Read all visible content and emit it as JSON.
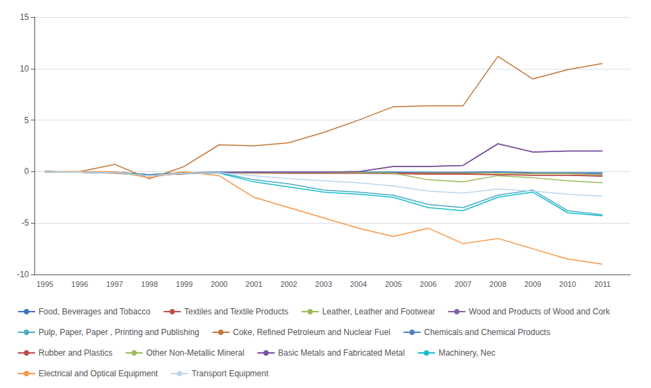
{
  "chart_data": {
    "type": "line",
    "x": [
      1995,
      1996,
      1997,
      1998,
      1999,
      2000,
      2001,
      2002,
      2003,
      2004,
      2005,
      2006,
      2007,
      2008,
      2009,
      2010,
      2011
    ],
    "series": [
      {
        "name": "Food, Beverages and Tobacco",
        "color": "#4472C4",
        "values": [
          0,
          -0.05,
          -0.05,
          -0.3,
          -0.1,
          -0.05,
          -0.05,
          -0.05,
          -0.05,
          -0.05,
          -0.05,
          -0.1,
          -0.1,
          -0.1,
          -0.15,
          -0.15,
          -0.2
        ]
      },
      {
        "name": "Textiles and Textile Products",
        "color": "#C0504D",
        "values": [
          0,
          -0.05,
          -0.15,
          -0.4,
          -0.2,
          -0.1,
          -0.15,
          -0.15,
          -0.15,
          -0.15,
          -0.2,
          -0.25,
          -0.25,
          -0.3,
          -0.35,
          -0.35,
          -0.4
        ]
      },
      {
        "name": "Leather, Leather and Footwear",
        "color": "#9BBB59",
        "values": [
          0,
          -0.05,
          -0.1,
          -0.35,
          -0.15,
          -0.05,
          -0.1,
          -0.1,
          -0.1,
          -0.1,
          -0.1,
          -0.15,
          -0.15,
          -0.15,
          -0.2,
          -0.2,
          -0.3
        ]
      },
      {
        "name": "Wood and Products of Wood and Cork",
        "color": "#8064A2",
        "values": [
          0,
          -0.05,
          -0.1,
          -0.3,
          -0.15,
          -0.1,
          -0.05,
          -0.05,
          -0.05,
          0.0,
          0.5,
          0.5,
          0.6,
          2.7,
          1.9,
          2.0,
          2.0
        ]
      },
      {
        "name": "Pulp, Paper, Paper , Printing and Publishing",
        "color": "#4BACC6",
        "values": [
          0,
          -0.05,
          -0.1,
          -0.35,
          -0.15,
          -0.1,
          -0.8,
          -1.2,
          -1.8,
          -2.0,
          -2.3,
          -3.2,
          -3.5,
          -2.3,
          -1.8,
          -3.8,
          -4.2
        ]
      },
      {
        "name": "Coke, Refined Petroleum and Nuclear Fuel",
        "color": "#C0793A",
        "values": [
          0,
          0.0,
          0.7,
          -0.7,
          0.5,
          2.6,
          2.5,
          2.8,
          3.8,
          5.0,
          6.3,
          6.4,
          6.4,
          11.2,
          9.0,
          9.9,
          10.5
        ]
      },
      {
        "name": "Chemicals and Chemical Products",
        "color": "#4F81BD",
        "values": [
          0,
          -0.05,
          -0.05,
          -0.3,
          -0.1,
          -0.05,
          -0.05,
          -0.05,
          -0.05,
          -0.05,
          -0.05,
          -0.05,
          -0.05,
          0.0,
          -0.1,
          -0.1,
          -0.1
        ]
      },
      {
        "name": "Rubber and Plastics",
        "color": "#BE4B48",
        "values": [
          0,
          -0.05,
          -0.1,
          -0.4,
          -0.2,
          -0.1,
          -0.1,
          -0.15,
          -0.15,
          -0.15,
          -0.15,
          -0.2,
          -0.2,
          -0.3,
          -0.35,
          -0.35,
          -0.45
        ]
      },
      {
        "name": "Other Non-Metallic Mineral",
        "color": "#9BBB59",
        "values": [
          0,
          -0.05,
          -0.05,
          -0.3,
          -0.1,
          -0.1,
          -0.1,
          -0.1,
          -0.1,
          -0.1,
          -0.15,
          -0.8,
          -1.0,
          -0.4,
          -0.6,
          -0.9,
          -1.1
        ]
      },
      {
        "name": "Basic Metals and Fabricated Metal",
        "color": "#7C4FA0",
        "values": [
          0,
          -0.05,
          -0.1,
          -0.3,
          -0.15,
          -0.1,
          -0.05,
          -0.05,
          -0.05,
          0.0,
          0.5,
          0.5,
          0.6,
          2.7,
          1.9,
          2.0,
          2.0
        ]
      },
      {
        "name": "Machinery, Nec",
        "color": "#17BECF",
        "values": [
          0,
          -0.05,
          -0.1,
          -0.35,
          -0.15,
          -0.15,
          -1.0,
          -1.5,
          -2.0,
          -2.2,
          -2.5,
          -3.5,
          -3.8,
          -2.5,
          -2.0,
          -4.0,
          -4.3
        ]
      },
      {
        "name": "Electrical and Optical Equipment",
        "color": "#F79646",
        "values": [
          0,
          0.0,
          0.0,
          -0.6,
          0.0,
          -0.4,
          -2.5,
          -3.5,
          -4.5,
          -5.5,
          -6.3,
          -5.5,
          -7.0,
          -6.5,
          -7.5,
          -8.5,
          -9.0
        ]
      },
      {
        "name": "Transport Equipment",
        "color": "#BDD7EE",
        "values": [
          0,
          -0.05,
          -0.1,
          -0.4,
          -0.15,
          -0.1,
          -0.4,
          -0.7,
          -0.9,
          -1.1,
          -1.4,
          -1.9,
          -2.1,
          -1.7,
          -1.9,
          -2.2,
          -2.4
        ]
      }
    ],
    "xlim": [
      1994.7,
      2011.8
    ],
    "xticks": [
      1995,
      1996,
      1997,
      1998,
      1999,
      2000,
      2001,
      2002,
      2003,
      2004,
      2005,
      2006,
      2007,
      2008,
      2009,
      2010,
      2011
    ],
    "ylim": [
      -10,
      15
    ],
    "yticks": [
      -10,
      -5,
      0,
      5,
      10,
      15
    ],
    "grid": true,
    "legend": "lower left"
  }
}
